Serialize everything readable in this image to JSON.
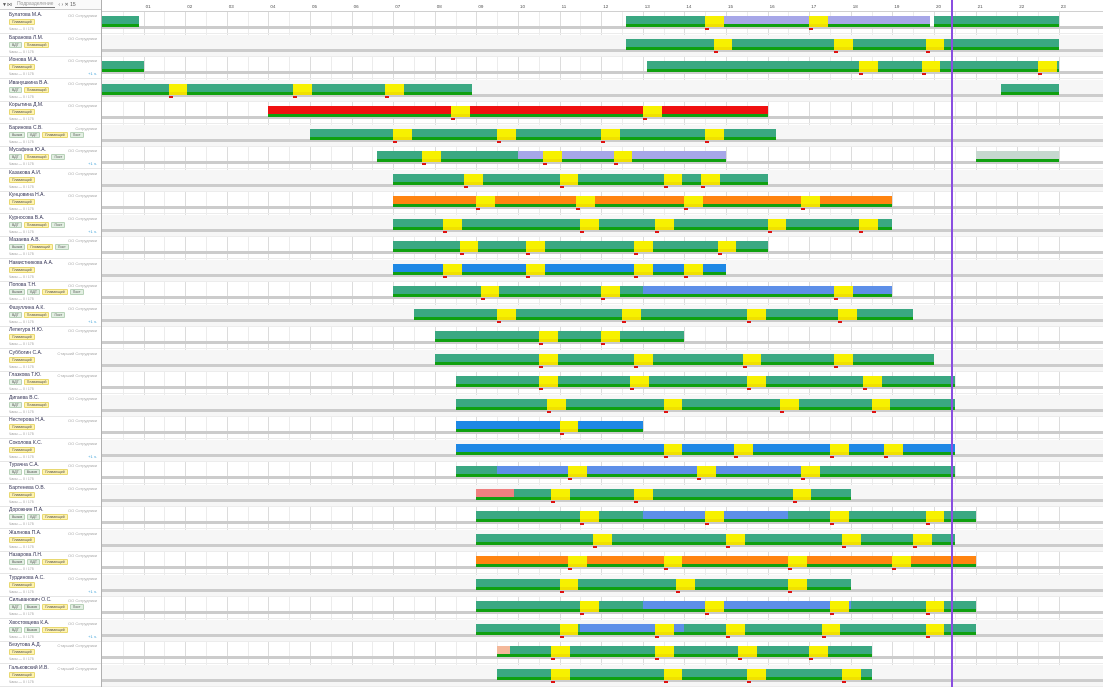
{
  "filter": {
    "placeholder": "Подразделение",
    "nav": "‹  ›  ✕  15"
  },
  "timeline": {
    "days": [
      "01",
      "02",
      "03",
      "04",
      "05",
      "06",
      "07",
      "08",
      "09",
      "10",
      "11",
      "12",
      "13",
      "14",
      "15",
      "16",
      "17",
      "18",
      "19",
      "20",
      "21",
      "22",
      "23"
    ]
  },
  "colors": {
    "green": "#3aa882",
    "yellow": "#f7f100",
    "red": "#f01010",
    "orange": "#ff8410",
    "blue": "#1e88e5",
    "lavender": "#a7a7e8",
    "lightblue": "#5d8fe8",
    "pink": "#f08080",
    "salmon": "#f4b89a",
    "gray": "#c6d8cf",
    "today": "#8a4ee0"
  },
  "employees": [
    {
      "name": "Булатова М.А.",
      "role": "ОО Сотрудники",
      "tags": [
        "Плавающий"
      ],
      "hours": "Часы — 0 / 175"
    },
    {
      "name": "Баранова Л.М.",
      "role": "ОО Сотрудники",
      "tags": [
        "ВДТ",
        "Плавающий"
      ],
      "hours": "Часы — 0 / 175"
    },
    {
      "name": "Ионова М.А.",
      "role": "ОО Сотрудники",
      "tags": [
        "Плавающий"
      ],
      "hours": "Часы — 0 / 175",
      "plus": "+1 ч."
    },
    {
      "name": "Иванушкина В.А.",
      "role": "ОО Сотрудники",
      "tags": [
        "ВДТ",
        "Плавающий"
      ],
      "hours": "Часы — 0 / 175"
    },
    {
      "name": "Корытина Д.М.",
      "role": "ОО Сотрудники",
      "tags": [
        "Плавающий"
      ],
      "hours": "Часы — 0 / 175"
    },
    {
      "name": "Баринова С.В.",
      "role": "Сотрудники",
      "tags": [
        "Вызов",
        "ВДТ",
        "Плавающий",
        "Пост"
      ],
      "hours": "Часы — 0 / 175"
    },
    {
      "name": "Мусафина Ю.А.",
      "role": "ОО Сотрудники",
      "tags": [
        "ВДТ",
        "Плавающий",
        "Пост"
      ],
      "hours": "Часы — 0 / 175",
      "plus": "+1 ч."
    },
    {
      "name": "Казакова А.И.",
      "role": "ОО Сотрудники",
      "tags": [
        "Плавающий"
      ],
      "hours": "Часы — 0 / 175"
    },
    {
      "name": "Кунцовина Н.А.",
      "role": "ОО Сотрудники",
      "tags": [
        "Плавающий"
      ],
      "hours": "Часы — 0 / 175"
    },
    {
      "name": "Курносова В.А.",
      "role": "ОО Сотрудники",
      "tags": [
        "ВДТ",
        "Плавающий",
        "Пост"
      ],
      "hours": "Часы — 0 / 175",
      "plus": "+1 ч."
    },
    {
      "name": "Мазаева А.В.",
      "role": "ОО Сотрудники",
      "tags": [
        "Вызов",
        "Плавающий",
        "Пост"
      ],
      "hours": "Часы — 0 / 175"
    },
    {
      "name": "Намистникова А.А.",
      "role": "ОО Сотрудники",
      "tags": [
        "Плавающий"
      ],
      "hours": "Часы — 0 / 175"
    },
    {
      "name": "Попова Т.Н.",
      "role": "ОО Сотрудники",
      "tags": [
        "Вызов",
        "ВДТ",
        "Плавающий",
        "Пост"
      ],
      "hours": "Часы — 0 / 175"
    },
    {
      "name": "Фазуллина А.К.",
      "role": "ОО Сотрудники",
      "tags": [
        "ВДТ",
        "Плавающий",
        "Пост"
      ],
      "hours": "Часы — 0 / 175",
      "plus": "+1 ч."
    },
    {
      "name": "Лепегура Н.Ю.",
      "role": "ОО Сотрудники",
      "tags": [
        "Плавающий"
      ],
      "hours": "Часы — 0 / 175"
    },
    {
      "name": "Суббогин С.А.",
      "role": "Старший Сотрудники",
      "tags": [
        "Плавающий"
      ],
      "hours": "Часы — 0 / 175"
    },
    {
      "name": "Глазкова Т.Ю.",
      "role": "Старший Сотрудники",
      "tags": [
        "ВДТ",
        "Плавающий"
      ],
      "hours": "Часы — 0 / 175"
    },
    {
      "name": "Дигаева В.С.",
      "role": "ОО Сотрудники",
      "tags": [
        "ВДТ",
        "Плавающий"
      ],
      "hours": "Часы — 0 / 175"
    },
    {
      "name": "Нестерова Н.А.",
      "role": "ОО Сотрудники",
      "tags": [
        "Плавающий"
      ],
      "hours": "Часы — 0 / 175"
    },
    {
      "name": "Соколова К.С.",
      "role": "ОО Сотрудники",
      "tags": [
        "Плавающий"
      ],
      "hours": "Часы — 0 / 175",
      "plus": "+1 ч."
    },
    {
      "name": "Турачна С.А.",
      "role": "ОО Сотрудники",
      "tags": [
        "ВДТ",
        "Вызов",
        "Плавающий"
      ],
      "hours": "Часы — 0 / 175"
    },
    {
      "name": "Бартенева О.В.",
      "role": "ОО Сотрудники",
      "tags": [
        "Плавающий"
      ],
      "hours": "Часы — 0 / 175"
    },
    {
      "name": "Дорожнин П.А.",
      "role": "ОО Сотрудники",
      "tags": [
        "Вызов",
        "ВДТ",
        "Плавающий"
      ],
      "hours": "Часы — 0 / 175"
    },
    {
      "name": "Жалнова П.А.",
      "role": "ОО Сотрудники",
      "tags": [
        "Плавающий"
      ],
      "hours": "Часы — 0 / 175"
    },
    {
      "name": "Назарова Л.Н.",
      "role": "ОО Сотрудники",
      "tags": [
        "Вызов",
        "ВДТ",
        "Плавающий"
      ],
      "hours": "Часы — 0 / 175"
    },
    {
      "name": "Турдинова А.С.",
      "role": "ОО Сотрудники",
      "tags": [
        "Плавающий"
      ],
      "hours": "Часы — 0 / 175",
      "plus": "+1 ч."
    },
    {
      "name": "Сильванович О.С.",
      "role": "ОО Сотрудники",
      "tags": [
        "ВДТ",
        "Вызов",
        "Плавающий",
        "Пост"
      ],
      "hours": "Часы — 0 / 175"
    },
    {
      "name": "Хвостовцева К.А.",
      "role": "ОО Сотрудники",
      "tags": [
        "ВДТ",
        "Вызов",
        "Плавающий"
      ],
      "hours": "Часы — 0 / 175",
      "plus": "+1 ч."
    },
    {
      "name": "Безутова А.Д.",
      "role": "Старший Сотрудники",
      "tags": [
        "Плавающий"
      ],
      "hours": "Часы — 0 / 175"
    },
    {
      "name": "Гальковский И.В.",
      "role": "Старший Сотрудники",
      "tags": [
        "Плавающий"
      ],
      "hours": "Часы — 0 / 175"
    }
  ],
  "shifts": [
    {
      "row": 0,
      "col": "green",
      "start": 0.0,
      "end": 0.9
    },
    {
      "row": 0,
      "col": "green",
      "start": 12.6,
      "end": 14.6
    },
    {
      "row": 0,
      "col": "lavender",
      "start": 14.6,
      "end": 19.9
    },
    {
      "row": 0,
      "col": "green",
      "start": 20.0,
      "end": 23.0
    },
    {
      "row": 1,
      "col": "green",
      "start": 12.6,
      "end": 20.0
    },
    {
      "row": 1,
      "col": "green",
      "start": 20.1,
      "end": 23.0
    },
    {
      "row": 2,
      "col": "green",
      "start": 0.0,
      "end": 1.0
    },
    {
      "row": 2,
      "col": "green",
      "start": 13.1,
      "end": 20.0
    },
    {
      "row": 2,
      "col": "green",
      "start": 20.1,
      "end": 23.0
    },
    {
      "row": 3,
      "col": "green",
      "start": 0.0,
      "end": 8.9
    },
    {
      "row": 3,
      "col": "green",
      "start": 21.6,
      "end": 23.0
    },
    {
      "row": 4,
      "col": "red",
      "start": 4.0,
      "end": 16.0
    },
    {
      "row": 5,
      "col": "green",
      "start": 5.0,
      "end": 16.2
    },
    {
      "row": 6,
      "col": "green",
      "start": 6.6,
      "end": 10.0
    },
    {
      "row": 6,
      "col": "lavender",
      "start": 10.0,
      "end": 15.0
    },
    {
      "row": 6,
      "col": "gray",
      "start": 21.0,
      "end": 23.0
    },
    {
      "row": 7,
      "col": "green",
      "start": 7.0,
      "end": 16.0
    },
    {
      "row": 8,
      "col": "orange",
      "start": 7.0,
      "end": 19.0
    },
    {
      "row": 9,
      "col": "green",
      "start": 7.0,
      "end": 19.0
    },
    {
      "row": 10,
      "col": "green",
      "start": 7.0,
      "end": 16.0
    },
    {
      "row": 11,
      "col": "blue",
      "start": 7.0,
      "end": 15.0
    },
    {
      "row": 12,
      "col": "green",
      "start": 7.0,
      "end": 13.0
    },
    {
      "row": 12,
      "col": "lightblue",
      "start": 13.0,
      "end": 19.0
    },
    {
      "row": 13,
      "col": "green",
      "start": 7.5,
      "end": 19.5
    },
    {
      "row": 14,
      "col": "green",
      "start": 8.0,
      "end": 14.0
    },
    {
      "row": 15,
      "col": "green",
      "start": 8.0,
      "end": 20.0
    },
    {
      "row": 16,
      "col": "green",
      "start": 8.5,
      "end": 20.5
    },
    {
      "row": 17,
      "col": "green",
      "start": 8.5,
      "end": 20.5
    },
    {
      "row": 18,
      "col": "blue",
      "start": 8.5,
      "end": 13.0
    },
    {
      "row": 19,
      "col": "blue",
      "start": 8.5,
      "end": 20.5
    },
    {
      "row": 20,
      "col": "green",
      "start": 8.5,
      "end": 9.5
    },
    {
      "row": 20,
      "col": "lightblue",
      "start": 9.5,
      "end": 17.0
    },
    {
      "row": 20,
      "col": "green",
      "start": 17.0,
      "end": 20.5
    },
    {
      "row": 21,
      "col": "pink",
      "start": 9.0,
      "end": 9.9
    },
    {
      "row": 21,
      "col": "green",
      "start": 9.9,
      "end": 18.0
    },
    {
      "row": 22,
      "col": "green",
      "start": 9.0,
      "end": 13.0
    },
    {
      "row": 22,
      "col": "lightblue",
      "start": 13.0,
      "end": 16.5
    },
    {
      "row": 22,
      "col": "green",
      "start": 16.5,
      "end": 21.0
    },
    {
      "row": 23,
      "col": "green",
      "start": 9.0,
      "end": 20.5
    },
    {
      "row": 24,
      "col": "orange",
      "start": 9.0,
      "end": 21.0
    },
    {
      "row": 25,
      "col": "green",
      "start": 9.0,
      "end": 18.0
    },
    {
      "row": 26,
      "col": "green",
      "start": 9.0,
      "end": 13.0
    },
    {
      "row": 26,
      "col": "lightblue",
      "start": 13.0,
      "end": 18.0
    },
    {
      "row": 26,
      "col": "green",
      "start": 18.0,
      "end": 21.0
    },
    {
      "row": 27,
      "col": "green",
      "start": 9.0,
      "end": 11.5
    },
    {
      "row": 27,
      "col": "lightblue",
      "start": 11.5,
      "end": 14.0
    },
    {
      "row": 27,
      "col": "green",
      "start": 14.0,
      "end": 21.0
    },
    {
      "row": 28,
      "col": "salmon",
      "start": 9.5,
      "end": 9.8
    },
    {
      "row": 28,
      "col": "green",
      "start": 9.8,
      "end": 18.5
    },
    {
      "row": 29,
      "col": "green",
      "start": 9.5,
      "end": 18.5
    }
  ],
  "breaks": [
    {
      "row": 0,
      "pos": [
        14.5,
        17.0
      ]
    },
    {
      "row": 1,
      "pos": [
        14.7,
        17.6,
        19.8
      ]
    },
    {
      "row": 2,
      "pos": [
        18.2,
        19.7,
        22.5
      ]
    },
    {
      "row": 3,
      "pos": [
        1.6,
        4.6,
        6.8
      ]
    },
    {
      "row": 4,
      "pos": [
        8.4,
        13.0
      ]
    },
    {
      "row": 5,
      "pos": [
        7.0,
        9.5,
        12.0,
        14.5
      ]
    },
    {
      "row": 6,
      "pos": [
        7.7,
        10.6,
        12.3
      ]
    },
    {
      "row": 7,
      "pos": [
        8.7,
        11.0,
        13.5,
        14.4
      ]
    },
    {
      "row": 8,
      "pos": [
        9.0,
        11.4,
        14.0,
        16.8
      ]
    },
    {
      "row": 9,
      "pos": [
        8.2,
        11.5,
        13.3,
        16.0,
        18.2
      ]
    },
    {
      "row": 10,
      "pos": [
        8.6,
        10.2,
        12.8,
        14.8
      ]
    },
    {
      "row": 11,
      "pos": [
        8.2,
        10.2,
        12.8,
        14.0
      ]
    },
    {
      "row": 12,
      "pos": [
        9.1,
        12.0,
        17.6
      ]
    },
    {
      "row": 13,
      "pos": [
        9.5,
        12.5,
        15.5,
        17.7
      ]
    },
    {
      "row": 14,
      "pos": [
        10.5,
        12.0
      ]
    },
    {
      "row": 15,
      "pos": [
        10.5,
        12.8,
        15.4,
        17.6
      ]
    },
    {
      "row": 16,
      "pos": [
        10.5,
        12.7,
        15.5,
        18.3
      ]
    },
    {
      "row": 17,
      "pos": [
        10.7,
        13.5,
        16.3,
        18.5
      ]
    },
    {
      "row": 18,
      "pos": [
        11.0
      ]
    },
    {
      "row": 19,
      "pos": [
        13.5,
        15.2,
        17.5,
        18.8
      ]
    },
    {
      "row": 20,
      "pos": [
        11.2,
        14.3,
        16.8
      ]
    },
    {
      "row": 21,
      "pos": [
        10.8,
        12.8,
        16.6
      ]
    },
    {
      "row": 22,
      "pos": [
        11.5,
        14.5,
        17.5,
        19.8
      ]
    },
    {
      "row": 23,
      "pos": [
        11.8,
        15.0,
        17.8,
        19.5
      ]
    },
    {
      "row": 24,
      "pos": [
        11.2,
        13.5,
        16.5,
        19.0
      ]
    },
    {
      "row": 25,
      "pos": [
        11.0,
        13.8,
        16.5
      ]
    },
    {
      "row": 26,
      "pos": [
        11.5,
        14.5,
        17.5,
        19.8
      ]
    },
    {
      "row": 27,
      "pos": [
        11.0,
        13.3,
        15.0,
        17.3,
        19.8
      ]
    },
    {
      "row": 28,
      "pos": [
        10.8,
        13.3,
        15.3,
        17.0
      ]
    },
    {
      "row": 29,
      "pos": [
        10.8,
        13.5,
        15.5,
        17.8
      ]
    }
  ],
  "today_label": "20"
}
